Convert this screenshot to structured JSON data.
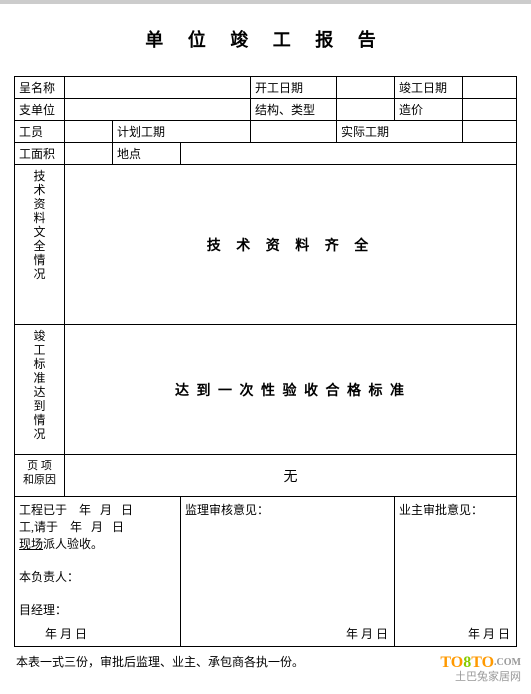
{
  "title": "单 位 竣 工 报 告",
  "row1": {
    "c1": "呈名称",
    "c2": "",
    "c3": "开工日期",
    "c4": "",
    "c5": "竣工日期",
    "c6": ""
  },
  "row2": {
    "c1": "支单位",
    "c2": "",
    "c3": "结构、类型",
    "c4": "",
    "c5": "造价",
    "c6": ""
  },
  "row3": {
    "c1": "工员",
    "c2": "",
    "c3": "计划工期",
    "c4": "",
    "c5": "实际工期",
    "c6": ""
  },
  "row4": {
    "c1": "工面积",
    "c2": "",
    "c3": "地点",
    "c4": ""
  },
  "tech": {
    "label": "技\n术\n资\n料\n文\n全\n情\n况",
    "content": "技 术 资 料 齐 全"
  },
  "standard": {
    "label": "竣\n工\n标\n准\n达\n到\n情\n况",
    "content": "达 到 一 次 性 验 收 合 格 标 准"
  },
  "items": {
    "label": "页 项\n和原因",
    "content": "无"
  },
  "signatures": {
    "left": {
      "line1_a": "工程已于",
      "line1_b": "年",
      "line1_c": "月",
      "line1_d": "日",
      "line2_a": "工,请于",
      "line2_b": "年",
      "line2_c": "月",
      "line2_d": "日",
      "line3": "现场",
      "line3_b": "派人验收。",
      "line4": "本负责人：",
      "line5": "目经理：",
      "date": "年  月  日"
    },
    "mid": {
      "label": "监理审核意见：",
      "date": "年  月  日"
    },
    "right": {
      "label": "业主审批意见：",
      "date": "年  月  日"
    }
  },
  "footer": "本表一式三份，审批后监理、业主、承包商各执一份。",
  "watermark": {
    "to": "TO",
    "eight": "8",
    "tocom": "TO",
    "com": ".COM",
    "bottom": "土巴兔家居网"
  }
}
